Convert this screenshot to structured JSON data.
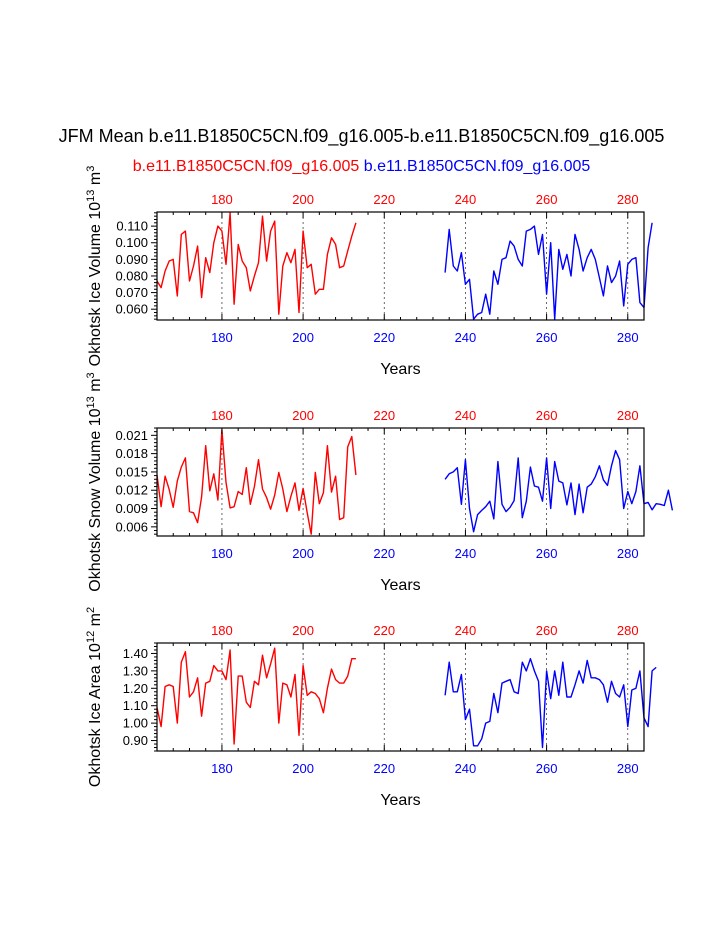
{
  "title": "JFM Mean b.e11.B1850C5CN.f09_g16.005-b.e11.B1850C5CN.f09_g16.005",
  "case_a": {
    "label": "b.e11.B1850C5CN.f09_g16.005",
    "color": "#ff0000"
  },
  "case_b": {
    "label": "b.e11.B1850C5CN.f09_g16.005",
    "color": "#0000ff"
  },
  "chart_data": [
    {
      "type": "line",
      "name": "ice-volume",
      "ylabel": "Okhotsk Ice Volume 10^13 m^3",
      "ylabel_base": "Okhotsk Ice Volume 10",
      "ylabel_exp": "13",
      "ylabel_unit": " m",
      "ylabel_unit_exp": "3",
      "xlabel": "Years",
      "xlim": [
        164,
        284
      ],
      "ylim": [
        0.0535,
        0.1185
      ],
      "yticks": [
        0.06,
        0.07,
        0.08,
        0.09,
        0.1,
        0.11
      ],
      "ytick_labels": [
        "0.060",
        "0.070",
        "0.080",
        "0.090",
        "0.100",
        "0.110"
      ],
      "yminor_step": 0.002,
      "xticks": [
        180,
        200,
        220,
        240,
        260,
        280
      ],
      "top_tick_labels": [
        "180",
        "200",
        "220",
        "240",
        "260",
        "280"
      ],
      "bottom_tick_labels": [
        "180",
        "200",
        "220",
        "240",
        "260",
        "280"
      ],
      "series": [
        {
          "name": "case-a",
          "color": "#ff0000",
          "x_start": 164,
          "values": [
            0.077,
            0.073,
            0.083,
            0.089,
            0.09,
            0.068,
            0.105,
            0.107,
            0.077,
            0.086,
            0.098,
            0.067,
            0.091,
            0.082,
            0.1,
            0.11,
            0.107,
            0.087,
            0.118,
            0.063,
            0.099,
            0.089,
            0.085,
            0.071,
            0.08,
            0.088,
            0.116,
            0.089,
            0.107,
            0.113,
            0.057,
            0.086,
            0.094,
            0.088,
            0.096,
            0.058,
            0.107,
            0.085,
            0.087,
            0.069,
            0.072,
            0.072,
            0.093,
            0.103,
            0.099,
            0.085,
            0.086,
            0.095,
            0.104,
            0.112
          ]
        },
        {
          "name": "case-b",
          "color": "#0000ff",
          "x_start": 235,
          "values": [
            0.082,
            0.108,
            0.086,
            0.083,
            0.094,
            0.075,
            0.078,
            0.054,
            0.057,
            0.058,
            0.069,
            0.057,
            0.083,
            0.075,
            0.09,
            0.091,
            0.101,
            0.098,
            0.09,
            0.086,
            0.107,
            0.108,
            0.11,
            0.093,
            0.105,
            0.069,
            0.1,
            0.054,
            0.096,
            0.084,
            0.093,
            0.08,
            0.105,
            0.096,
            0.083,
            0.091,
            0.096,
            0.09,
            0.079,
            0.068,
            0.086,
            0.076,
            0.08,
            0.089,
            0.062,
            0.087,
            0.09,
            0.091,
            0.064,
            0.061,
            0.097,
            0.112
          ]
        }
      ]
    },
    {
      "type": "line",
      "name": "snow-volume",
      "ylabel": "Okhotsk Snow Volume 10^13 m^3",
      "ylabel_base": "Okhotsk Snow Volume 10",
      "ylabel_exp": "13",
      "ylabel_unit": " m",
      "ylabel_unit_exp": "3",
      "xlabel": "Years",
      "xlim": [
        164,
        284
      ],
      "ylim": [
        0.0045,
        0.0222
      ],
      "yticks": [
        0.006,
        0.009,
        0.012,
        0.015,
        0.018,
        0.021
      ],
      "ytick_labels": [
        "0.006",
        "0.009",
        "0.012",
        "0.015",
        "0.018",
        "0.021"
      ],
      "yminor_step": 0.0006,
      "xticks": [
        180,
        200,
        220,
        240,
        260,
        280
      ],
      "top_tick_labels": [
        "180",
        "200",
        "220",
        "240",
        "260",
        "280"
      ],
      "bottom_tick_labels": [
        "180",
        "200",
        "220",
        "240",
        "260",
        "280"
      ],
      "series": [
        {
          "name": "case-a",
          "color": "#ff0000",
          "x_start": 164,
          "values": [
            0.0145,
            0.0093,
            0.0143,
            0.0121,
            0.0092,
            0.0135,
            0.0158,
            0.0173,
            0.0085,
            0.0083,
            0.0067,
            0.0109,
            0.0193,
            0.0119,
            0.0147,
            0.0104,
            0.0219,
            0.0133,
            0.0091,
            0.0093,
            0.0118,
            0.0113,
            0.0157,
            0.0097,
            0.0126,
            0.017,
            0.0122,
            0.0108,
            0.0089,
            0.0112,
            0.0149,
            0.0122,
            0.0085,
            0.011,
            0.0132,
            0.0087,
            0.0123,
            0.0083,
            0.0048,
            0.0149,
            0.0098,
            0.0116,
            0.0193,
            0.0117,
            0.0143,
            0.0072,
            0.0075,
            0.0191,
            0.0208,
            0.0145
          ]
        },
        {
          "name": "case-b",
          "color": "#0000ff",
          "x_start": 235,
          "values": [
            0.0138,
            0.0147,
            0.015,
            0.0157,
            0.0097,
            0.017,
            0.009,
            0.0052,
            0.008,
            0.0087,
            0.0093,
            0.0102,
            0.0073,
            0.0167,
            0.0097,
            0.0085,
            0.0092,
            0.0103,
            0.0173,
            0.0075,
            0.0102,
            0.0158,
            0.0127,
            0.0125,
            0.0102,
            0.0173,
            0.009,
            0.0167,
            0.0135,
            0.0132,
            0.0096,
            0.0132,
            0.008,
            0.013,
            0.0083,
            0.0125,
            0.013,
            0.0142,
            0.016,
            0.0137,
            0.0128,
            0.016,
            0.0185,
            0.017,
            0.009,
            0.0118,
            0.0098,
            0.0118,
            0.016,
            0.0098,
            0.01,
            0.0088,
            0.0098,
            0.0097,
            0.0095,
            0.012,
            0.0087
          ]
        }
      ]
    },
    {
      "type": "line",
      "name": "ice-area",
      "ylabel": "Okhotsk Ice Area 10^12 m^2",
      "ylabel_base": "Okhotsk Ice Area 10",
      "ylabel_exp": "12",
      "ylabel_unit": " m",
      "ylabel_unit_exp": "2",
      "xlabel": "Years",
      "xlim": [
        164,
        284
      ],
      "ylim": [
        0.84,
        1.46
      ],
      "yticks": [
        0.9,
        1.0,
        1.1,
        1.2,
        1.3,
        1.4
      ],
      "ytick_labels": [
        "0.90",
        "1.00",
        "1.10",
        "1.20",
        "1.30",
        "1.40"
      ],
      "yminor_step": 0.02,
      "xticks": [
        180,
        200,
        220,
        240,
        260,
        280
      ],
      "top_tick_labels": [
        "180",
        "200",
        "220",
        "240",
        "260",
        "280"
      ],
      "bottom_tick_labels": [
        "180",
        "200",
        "220",
        "240",
        "260",
        "280"
      ],
      "series": [
        {
          "name": "case-a",
          "color": "#ff0000",
          "x_start": 164,
          "values": [
            1.09,
            0.98,
            1.21,
            1.22,
            1.21,
            1.0,
            1.35,
            1.41,
            1.15,
            1.18,
            1.26,
            1.04,
            1.23,
            1.24,
            1.33,
            1.3,
            1.3,
            1.25,
            1.42,
            0.88,
            1.27,
            1.27,
            1.12,
            1.09,
            1.24,
            1.22,
            1.39,
            1.26,
            1.34,
            1.43,
            1.0,
            1.23,
            1.22,
            1.15,
            1.28,
            0.93,
            1.33,
            1.16,
            1.18,
            1.17,
            1.14,
            1.06,
            1.2,
            1.31,
            1.25,
            1.23,
            1.23,
            1.27,
            1.37,
            1.37
          ]
        },
        {
          "name": "case-b",
          "color": "#0000ff",
          "x_start": 235,
          "values": [
            1.16,
            1.35,
            1.18,
            1.18,
            1.28,
            1.02,
            1.08,
            0.87,
            0.87,
            0.91,
            1.0,
            1.01,
            1.17,
            1.06,
            1.23,
            1.24,
            1.25,
            1.18,
            1.17,
            1.35,
            1.3,
            1.37,
            1.3,
            1.24,
            0.86,
            1.3,
            1.14,
            1.3,
            1.16,
            1.35,
            1.15,
            1.15,
            1.22,
            1.3,
            1.23,
            1.36,
            1.26,
            1.26,
            1.25,
            1.22,
            1.12,
            1.24,
            1.17,
            1.15,
            1.22,
            0.98,
            1.19,
            1.2,
            1.3,
            1.03,
            0.98,
            1.3,
            1.32
          ]
        }
      ]
    }
  ]
}
